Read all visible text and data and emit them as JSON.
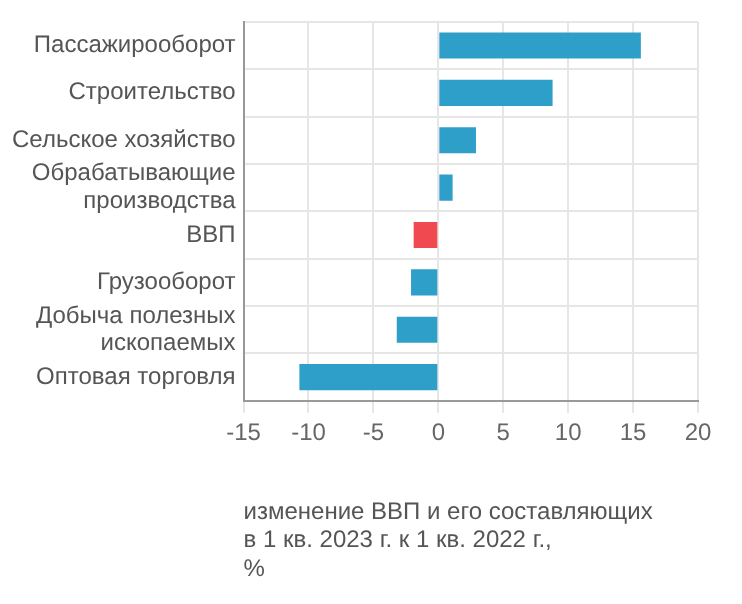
{
  "chart_data": {
    "type": "bar",
    "orientation": "horizontal",
    "xlabel": "изменение ВВП и его составляющих\nв 1 кв. 2023 г. к 1 кв. 2022 г.,\n%",
    "categories": [
      "Пассажирооборот",
      "Строительство",
      "Сельское хозяйство",
      "Обрабатывающие производства",
      "ВВП",
      "Грузооборот",
      "Добыча полезных ископаемых",
      "Оптовая торговля"
    ],
    "values": [
      15.6,
      8.8,
      2.9,
      1.1,
      -1.9,
      -2.1,
      -3.2,
      -10.7
    ],
    "colors": [
      "#2e9fc8",
      "#2e9fc8",
      "#2e9fc8",
      "#2e9fc8",
      "#f04a50",
      "#2e9fc8",
      "#2e9fc8",
      "#2e9fc8"
    ],
    "xlim": [
      -15,
      20
    ],
    "xticks": [
      -15,
      -10,
      -5,
      0,
      5,
      10,
      15,
      20
    ],
    "grid": true,
    "legend": false
  }
}
